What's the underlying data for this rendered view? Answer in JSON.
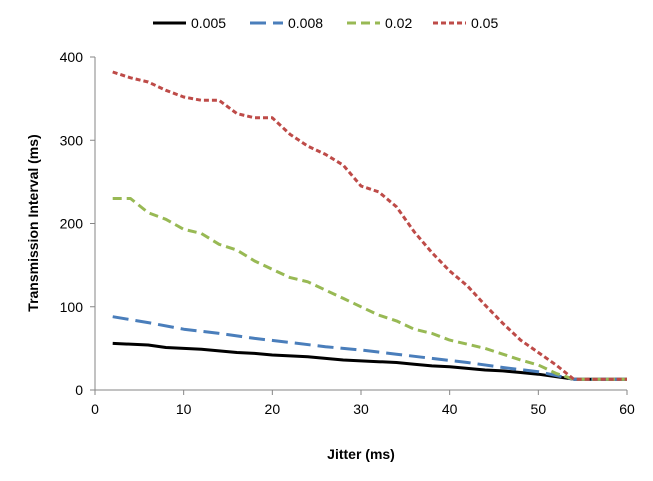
{
  "chart_data": {
    "type": "line",
    "title": "",
    "xlabel": "Jitter (ms)",
    "ylabel": "Transmission Interval (ms)",
    "xlim": [
      0,
      60
    ],
    "ylim": [
      0,
      400
    ],
    "xticks": [
      0,
      10,
      20,
      30,
      40,
      50,
      60
    ],
    "yticks": [
      0,
      100,
      200,
      300,
      400
    ],
    "xtick_labels": [
      "0",
      "10",
      "20",
      "30",
      "40",
      "50",
      "60"
    ],
    "ytick_labels": [
      "0",
      "100",
      "200",
      "300",
      "400"
    ],
    "grid": false,
    "legend_position": "top",
    "series": [
      {
        "name": "0.005",
        "color": "#000000",
        "style": "solid",
        "x": [
          2,
          6,
          8,
          10,
          12,
          14,
          16,
          18,
          20,
          22,
          24,
          26,
          28,
          30,
          32,
          34,
          36,
          38,
          40,
          42,
          44,
          46,
          48,
          50,
          52,
          54,
          56,
          58,
          60
        ],
        "y": [
          56,
          54,
          51,
          50,
          49,
          47,
          45,
          44,
          42,
          41,
          40,
          38,
          36,
          35,
          34,
          33,
          31,
          29,
          28,
          26,
          24,
          23,
          21,
          19,
          16,
          13,
          13,
          13,
          13
        ]
      },
      {
        "name": "0.008",
        "color": "#4a7ebb",
        "style": "long-dash",
        "x": [
          2,
          6,
          10,
          14,
          18,
          22,
          26,
          30,
          34,
          38,
          42,
          46,
          50,
          54,
          56,
          58,
          60
        ],
        "y": [
          88,
          81,
          73,
          68,
          62,
          57,
          52,
          48,
          43,
          38,
          33,
          27,
          22,
          13,
          13,
          13,
          13
        ]
      },
      {
        "name": "0.02",
        "color": "#98b954",
        "style": "dash",
        "x": [
          2,
          4,
          6,
          8,
          10,
          12,
          14,
          16,
          18,
          20,
          22,
          24,
          26,
          28,
          30,
          32,
          34,
          36,
          38,
          40,
          42,
          44,
          46,
          48,
          50,
          52,
          54,
          56,
          58,
          60
        ],
        "y": [
          230,
          230,
          213,
          205,
          193,
          188,
          175,
          168,
          155,
          145,
          135,
          130,
          120,
          110,
          100,
          90,
          83,
          73,
          68,
          60,
          55,
          50,
          43,
          36,
          30,
          20,
          13,
          13,
          13,
          13
        ]
      },
      {
        "name": "0.05",
        "color": "#be4b48",
        "style": "short-dash",
        "x": [
          2,
          4,
          6,
          8,
          10,
          12,
          14,
          16,
          18,
          20,
          22,
          24,
          26,
          28,
          30,
          32,
          34,
          36,
          38,
          40,
          42,
          44,
          46,
          48,
          50,
          52,
          54,
          56,
          58,
          60
        ],
        "y": [
          382,
          375,
          370,
          360,
          352,
          348,
          348,
          332,
          327,
          327,
          307,
          293,
          283,
          270,
          245,
          238,
          220,
          190,
          165,
          143,
          125,
          102,
          80,
          60,
          45,
          30,
          13,
          13,
          13,
          13
        ]
      }
    ]
  }
}
